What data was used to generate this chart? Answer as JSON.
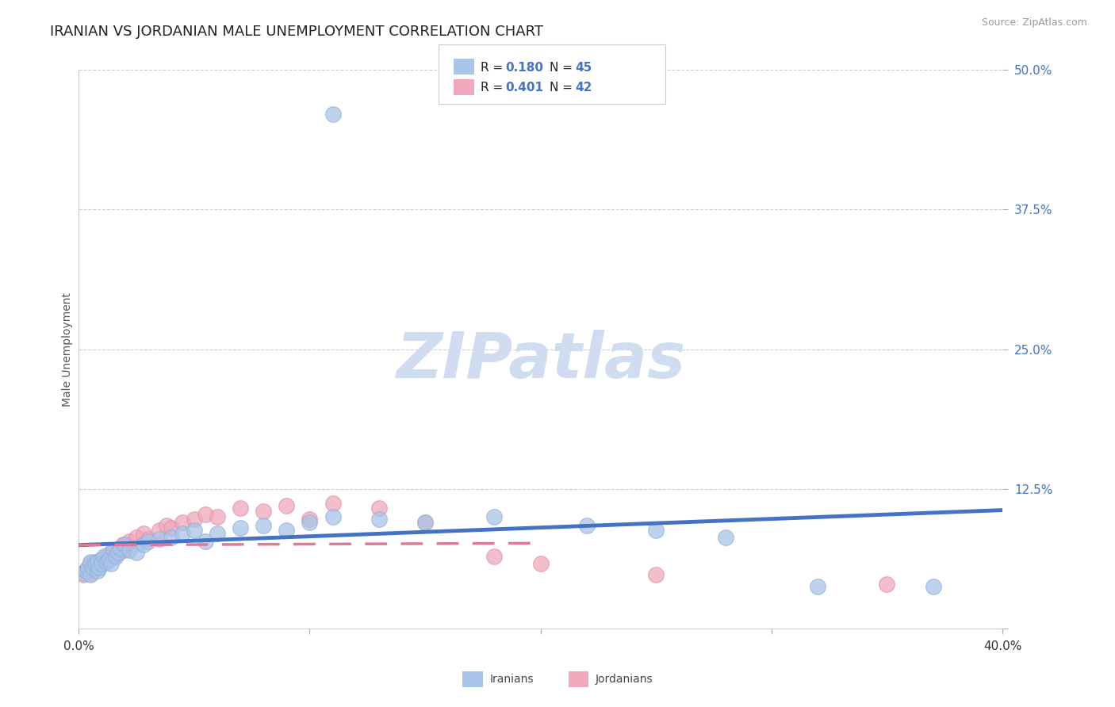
{
  "title": "IRANIAN VS JORDANIAN MALE UNEMPLOYMENT CORRELATION CHART",
  "source_text": "Source: ZipAtlas.com",
  "ylabel": "Male Unemployment",
  "xlim": [
    0.0,
    0.4
  ],
  "ylim": [
    0.0,
    0.5
  ],
  "yticks": [
    0.0,
    0.125,
    0.25,
    0.375,
    0.5
  ],
  "ytick_labels": [
    "",
    "12.5%",
    "25.0%",
    "37.5%",
    "50.0%"
  ],
  "xticks": [
    0.0,
    0.1,
    0.2,
    0.3,
    0.4
  ],
  "xtick_labels": [
    "0.0%",
    "",
    "",
    "",
    "40.0%"
  ],
  "title_fontsize": 13,
  "axis_label_fontsize": 10,
  "tick_fontsize": 11,
  "background_color": "#ffffff",
  "grid_color": "#c8d0dc",
  "iranians_color": "#a8c4e8",
  "jordanians_color": "#f0a8bc",
  "iranians_line_color": "#4472c4",
  "jordanians_line_color": "#e07898",
  "r_iranians": 0.18,
  "n_iranians": 45,
  "r_jordanians": 0.401,
  "n_jordanians": 42,
  "watermark": "ZIPatlas",
  "watermark_color": "#d0ddf0",
  "iranians_x": [
    0.002,
    0.003,
    0.004,
    0.005,
    0.005,
    0.006,
    0.007,
    0.008,
    0.008,
    0.009,
    0.01,
    0.01,
    0.011,
    0.012,
    0.013,
    0.014,
    0.015,
    0.016,
    0.017,
    0.018,
    0.02,
    0.022,
    0.025,
    0.028,
    0.03,
    0.035,
    0.04,
    0.045,
    0.05,
    0.055,
    0.06,
    0.07,
    0.08,
    0.09,
    0.1,
    0.11,
    0.13,
    0.15,
    0.18,
    0.22,
    0.25,
    0.28,
    0.32,
    0.37,
    0.11
  ],
  "iranians_y": [
    0.05,
    0.052,
    0.055,
    0.048,
    0.06,
    0.055,
    0.058,
    0.052,
    0.06,
    0.055,
    0.062,
    0.058,
    0.065,
    0.06,
    0.062,
    0.058,
    0.07,
    0.065,
    0.068,
    0.072,
    0.075,
    0.07,
    0.068,
    0.075,
    0.078,
    0.08,
    0.082,
    0.085,
    0.088,
    0.078,
    0.085,
    0.09,
    0.092,
    0.088,
    0.095,
    0.1,
    0.098,
    0.095,
    0.1,
    0.092,
    0.088,
    0.082,
    0.038,
    0.038,
    0.46
  ],
  "jordanians_x": [
    0.002,
    0.003,
    0.004,
    0.005,
    0.005,
    0.006,
    0.007,
    0.008,
    0.009,
    0.01,
    0.011,
    0.012,
    0.013,
    0.014,
    0.015,
    0.016,
    0.017,
    0.018,
    0.019,
    0.02,
    0.022,
    0.025,
    0.028,
    0.03,
    0.035,
    0.038,
    0.04,
    0.045,
    0.05,
    0.055,
    0.06,
    0.07,
    0.08,
    0.09,
    0.1,
    0.11,
    0.13,
    0.15,
    0.18,
    0.2,
    0.25,
    0.35
  ],
  "jordanians_y": [
    0.048,
    0.052,
    0.055,
    0.05,
    0.058,
    0.052,
    0.06,
    0.055,
    0.058,
    0.062,
    0.06,
    0.065,
    0.062,
    0.068,
    0.065,
    0.07,
    0.068,
    0.072,
    0.075,
    0.07,
    0.078,
    0.082,
    0.085,
    0.08,
    0.088,
    0.092,
    0.09,
    0.095,
    0.098,
    0.102,
    0.1,
    0.108,
    0.105,
    0.11,
    0.098,
    0.112,
    0.108,
    0.095,
    0.065,
    0.058,
    0.048,
    0.04
  ]
}
